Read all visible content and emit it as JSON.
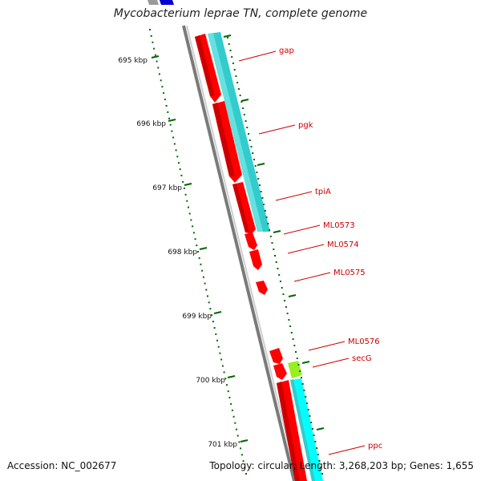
{
  "title": "Mycobacterium leprae TN, complete genome",
  "accession": "Accession: NC_002677",
  "summary": "Topology: circular; Length: 3,268,203 bp; Genes: 1,655",
  "colors": {
    "backbone": "#7a7a7a",
    "cds_forward": "#ff0000",
    "gene_band": "#33cccc",
    "gene_band_light": "#00ffff",
    "other_feature": "#99ee22",
    "tick": "#006600",
    "label": "#cc0000",
    "blue_feature": "#0000cc"
  },
  "ruler": {
    "labels": [
      "695 kbp",
      "696 kbp",
      "697 kbp",
      "698 kbp",
      "699 kbp",
      "700 kbp",
      "701 kbp"
    ]
  },
  "genes": [
    {
      "name": "gap"
    },
    {
      "name": "pgk"
    },
    {
      "name": "tpiA"
    },
    {
      "name": "ML0573"
    },
    {
      "name": "ML0574"
    },
    {
      "name": "ML0575"
    },
    {
      "name": "ML0576"
    },
    {
      "name": "secG"
    },
    {
      "name": "ppc"
    }
  ]
}
